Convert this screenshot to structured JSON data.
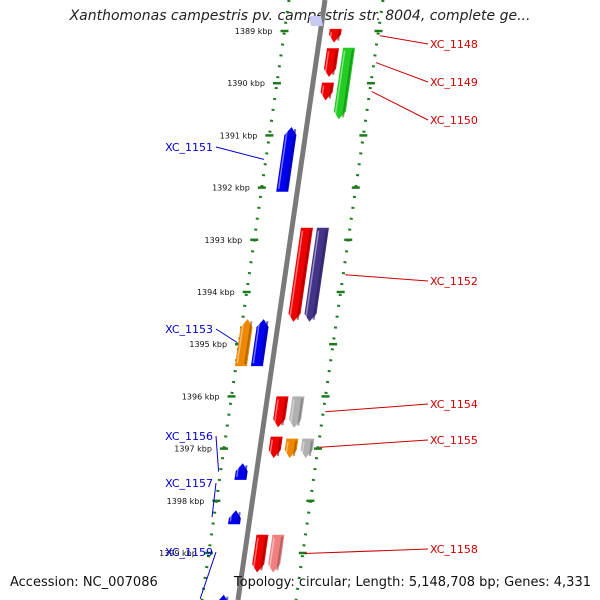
{
  "title": "Xanthomonas campestris pv. campestris str. 8004, complete ge...",
  "accession": "Accession: NC_007086",
  "topology": "Topology: circular; Length: 5,148,708 bp; Genes: 4,331",
  "colors": {
    "backbone": "#7a7a7a",
    "tick_dots": "#1e7a1e",
    "forward_label": "#0000cc",
    "reverse_label": "#cc0000"
  },
  "kbp_ticks": [
    {
      "label": "1389 kbp",
      "kbp": 1389
    },
    {
      "label": "1390 kbp",
      "kbp": 1390
    },
    {
      "label": "1391 kbp",
      "kbp": 1391
    },
    {
      "label": "1392 kbp",
      "kbp": 1392
    },
    {
      "label": "1393 kbp",
      "kbp": 1393
    },
    {
      "label": "1394 kbp",
      "kbp": 1394
    },
    {
      "label": "1395 kbp",
      "kbp": 1395
    },
    {
      "label": "1396 kbp",
      "kbp": 1396
    },
    {
      "label": "1397 kbp",
      "kbp": 1397
    },
    {
      "label": "1398 kbp",
      "kbp": 1398
    },
    {
      "label": "1399 kbp",
      "kbp": 1399
    }
  ],
  "genes": [
    {
      "label": "XC_1148",
      "strand": "reverse",
      "start_kbp": 1388.96,
      "end_kbp": 1389.22,
      "color": "#ee0000",
      "has_label": true
    },
    {
      "label": "XC_1149",
      "strand": "reverse",
      "start_kbp": 1389.33,
      "end_kbp": 1389.88,
      "color": "#ee0000",
      "has_label": true
    },
    {
      "label": "",
      "strand": "reverse",
      "start_kbp": 1389.32,
      "end_kbp": 1390.69,
      "color": "#22cc22",
      "lane": 2,
      "has_label": false
    },
    {
      "label": "XC_1150",
      "strand": "reverse",
      "start_kbp": 1389.99,
      "end_kbp": 1390.33,
      "color": "#ee0000",
      "has_label": true
    },
    {
      "label": "XC_1151",
      "strand": "forward",
      "start_kbp": 1390.84,
      "end_kbp": 1392.08,
      "color": "#0000ee",
      "has_label": true
    },
    {
      "label": "XC_1152",
      "strand": "reverse",
      "start_kbp": 1392.77,
      "end_kbp": 1394.57,
      "color": "#ee0000",
      "has_label": true
    },
    {
      "label": "",
      "strand": "reverse",
      "start_kbp": 1392.77,
      "end_kbp": 1394.57,
      "color": "#443388",
      "lane": 2,
      "has_label": false
    },
    {
      "label": "XC_1153",
      "strand": "forward",
      "start_kbp": 1394.52,
      "end_kbp": 1395.42,
      "color": "#0000ee",
      "has_label": true
    },
    {
      "label": "",
      "strand": "forward",
      "start_kbp": 1394.52,
      "end_kbp": 1395.42,
      "color": "#ee8800",
      "lane": 2,
      "has_label": false
    },
    {
      "label": "XC_1154",
      "strand": "reverse",
      "start_kbp": 1396.0,
      "end_kbp": 1396.59,
      "color": "#ee0000",
      "has_label": true
    },
    {
      "label": "",
      "strand": "reverse",
      "start_kbp": 1396.0,
      "end_kbp": 1396.6,
      "color": "#b0b0b0",
      "lane": 2,
      "has_label": false
    },
    {
      "label": "XC_1155",
      "strand": "reverse",
      "start_kbp": 1396.77,
      "end_kbp": 1397.18,
      "color": "#ee0000",
      "has_label": true
    },
    {
      "label": "",
      "strand": "reverse",
      "start_kbp": 1396.81,
      "end_kbp": 1397.18,
      "color": "#ee8800",
      "lane": 2,
      "has_label": false
    },
    {
      "label": "",
      "strand": "reverse",
      "start_kbp": 1396.81,
      "end_kbp": 1397.18,
      "color": "#b0b0b0",
      "lane": 3,
      "has_label": false
    },
    {
      "label": "XC_1156",
      "strand": "forward",
      "start_kbp": 1397.28,
      "end_kbp": 1397.6,
      "color": "#0000ee",
      "has_label": true
    },
    {
      "label": "XC_1157",
      "strand": "forward",
      "start_kbp": 1398.18,
      "end_kbp": 1398.45,
      "color": "#0000ee",
      "has_label": true
    },
    {
      "label": "XC_1158",
      "strand": "reverse",
      "start_kbp": 1398.65,
      "end_kbp": 1399.37,
      "color": "#ee0000",
      "has_label": true
    },
    {
      "label": "",
      "strand": "reverse",
      "start_kbp": 1398.65,
      "end_kbp": 1399.37,
      "color": "#f08080",
      "lane": 2,
      "has_label": false
    },
    {
      "label": "XC_1159",
      "strand": "forward",
      "start_kbp": 1399.8,
      "end_kbp": 1399.95,
      "color": "#0000ee",
      "has_label": true
    }
  ]
}
